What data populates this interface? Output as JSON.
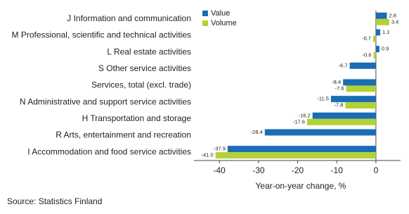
{
  "chart_data": {
    "type": "hbar",
    "categories": [
      "J Information and communication",
      "M Professional, scientific and technical activities",
      "L Real estate activities",
      "S Other service activities",
      "Services, total (excl. trade)",
      "N Administrative and support service activities",
      "H Transportation and storage",
      "R Arts, entertainment and recreation",
      "I Accommodation and food service activities"
    ],
    "series": [
      {
        "name": "Value",
        "color": "#1a6db5",
        "values": [
          2.8,
          1.1,
          0.9,
          -6.7,
          -8.4,
          -11.5,
          -16.2,
          -28.4,
          -37.9
        ]
      },
      {
        "name": "Volume",
        "color": "#b2d235",
        "values": [
          3.4,
          -0.7,
          -0.6,
          null,
          -7.6,
          -7.8,
          -17.6,
          null,
          -41.0
        ],
        "value_labels": [
          "3.4",
          "-0.7",
          "-0.6",
          null,
          "-7.6",
          "-7.8",
          "-17.6",
          null,
          "-41.0"
        ]
      }
    ],
    "xlim": [
      -46.5,
      6.3
    ],
    "xticks": [
      -40,
      -30,
      -20,
      -10,
      0
    ],
    "xlabel": "Year-on-year change, %",
    "source": "Source: Statistics Finland",
    "legend": "top-left",
    "grid": false
  }
}
